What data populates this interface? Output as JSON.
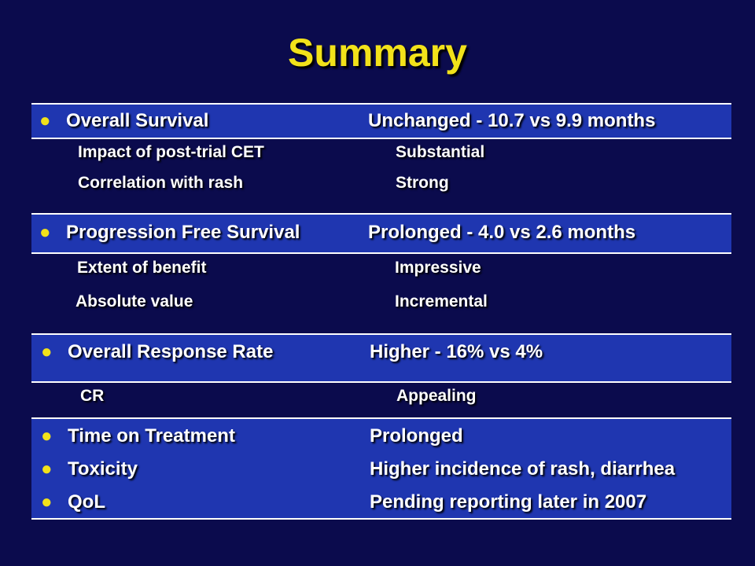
{
  "slide": {
    "title": "Summary",
    "bullet_glyph": "●"
  },
  "sections": [
    {
      "main": {
        "label": "Overall Survival",
        "value": "Unchanged - 10.7 vs 9.9 months"
      },
      "subs": [
        {
          "label": "Impact of post-trial CET",
          "value": "Substantial"
        },
        {
          "label": "Correlation with rash",
          "value": "Strong"
        }
      ]
    },
    {
      "main": {
        "label": "Progression Free Survival",
        "value": "Prolonged - 4.0 vs 2.6 months"
      },
      "subs": [
        {
          "label": "Extent of benefit",
          "value": "Impressive"
        },
        {
          "label": "Absolute value",
          "value": "Incremental"
        }
      ]
    },
    {
      "main": {
        "label": "Overall Response Rate",
        "value": "Higher - 16% vs 4%"
      },
      "subs": [
        {
          "label": "CR",
          "value": "Appealing"
        }
      ]
    },
    {
      "mains": [
        {
          "label": "Time on Treatment",
          "value": "Prolonged"
        },
        {
          "label": "Toxicity",
          "value": "Higher incidence of rash, diarrhea"
        },
        {
          "label": "QoL",
          "value": "Pending reporting later in 2007"
        }
      ]
    }
  ],
  "colors": {
    "background": "#0b0b4d",
    "band": "#1f36b0",
    "title": "#f2e21a",
    "bullet": "#f2e21a",
    "text": "#ffffff"
  }
}
